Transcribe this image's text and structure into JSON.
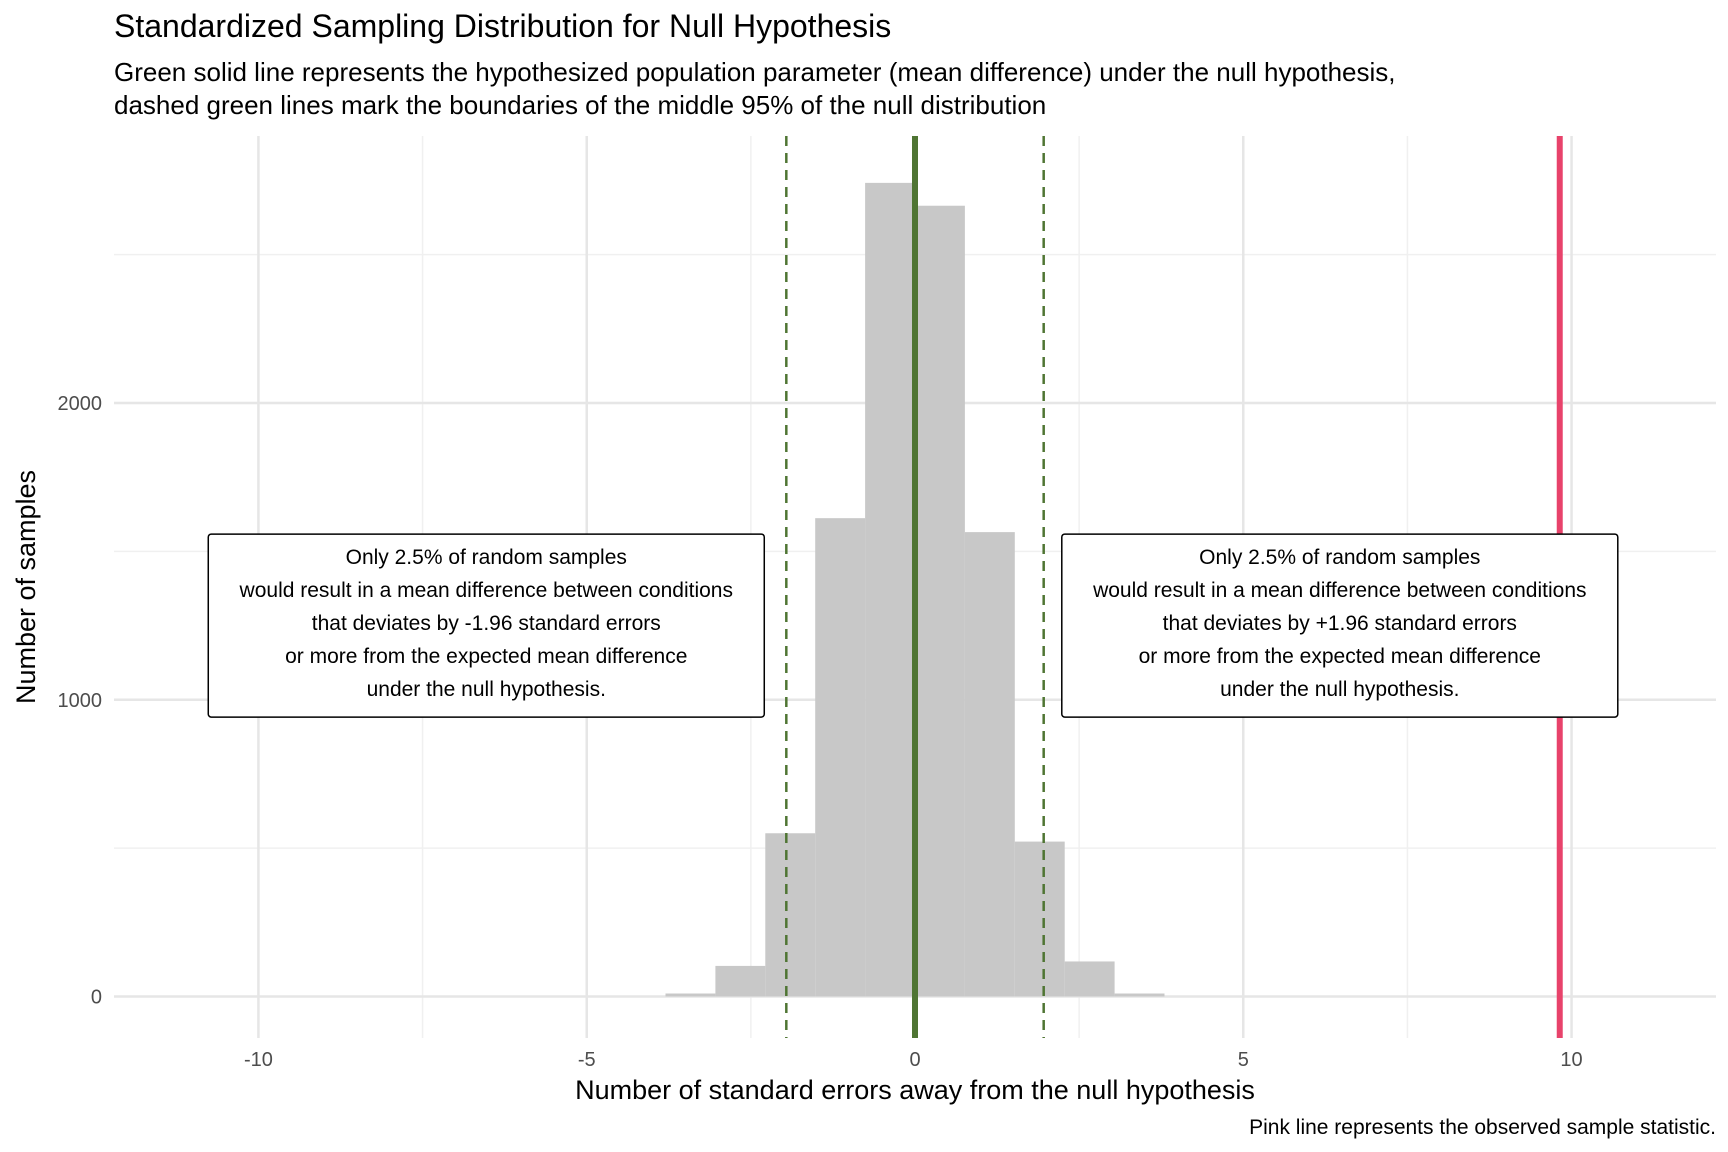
{
  "chart_data": {
    "type": "bar",
    "title": "Standardized Sampling Distribution for Null Hypothesis",
    "subtitle": [
      "Green solid line represents the hypothesized population parameter (mean difference) under the null hypothesis,",
      "dashed green lines mark the boundaries of the middle 95% of the null distribution"
    ],
    "caption": "Pink line represents the observed sample statistic.",
    "xlabel": "Number of standard errors away from the null hypothesis",
    "ylabel": "Number of samples",
    "xlim": [
      -12.2,
      12.2
    ],
    "ylim": [
      -140,
      2900
    ],
    "x_ticks": [
      {
        "value": -10,
        "label": "-10"
      },
      {
        "value": -5,
        "label": "-5"
      },
      {
        "value": 0,
        "label": "0"
      },
      {
        "value": 5,
        "label": "5"
      },
      {
        "value": 10,
        "label": "10"
      }
    ],
    "y_ticks": [
      {
        "value": 0,
        "label": "0"
      },
      {
        "value": 1000,
        "label": "1000"
      },
      {
        "value": 2000,
        "label": "2000"
      }
    ],
    "x_minor_grid": [
      -7.5,
      -2.5,
      2.5,
      7.5
    ],
    "y_minor_grid": [
      500,
      1500,
      2500
    ],
    "grid": true,
    "bin_width": 0.76,
    "bins": [
      {
        "left": -3.8,
        "count": 10
      },
      {
        "left": -3.04,
        "count": 103
      },
      {
        "left": -2.28,
        "count": 550
      },
      {
        "left": -1.52,
        "count": 1612
      },
      {
        "left": -0.76,
        "count": 2742
      },
      {
        "left": 0.0,
        "count": 2665
      },
      {
        "left": 0.76,
        "count": 1565
      },
      {
        "left": 1.52,
        "count": 522
      },
      {
        "left": 2.28,
        "count": 118
      },
      {
        "left": 3.04,
        "count": 10
      }
    ],
    "null_line": {
      "x": 0,
      "color": "#4f7533"
    },
    "boundary_lines": {
      "x": [
        -1.96,
        1.96
      ],
      "color": "#4f7533"
    },
    "observed_line": {
      "x": 9.82,
      "color": "#e8436b"
    },
    "bar_color": "#c8c8c8",
    "annotations": [
      {
        "side": "left",
        "x_center": -6.53,
        "y_center": 1250,
        "lines": [
          "Only 2.5% of random samples",
          "would result in a mean difference between conditions",
          "that deviates by -1.96 standard errors",
          "or more from the expected mean difference",
          "under the null hypothesis."
        ]
      },
      {
        "side": "right",
        "x_center": 6.47,
        "y_center": 1250,
        "lines": [
          "Only 2.5% of random samples",
          "would result in a mean difference between conditions",
          "that deviates by +1.96 standard errors",
          "or more from the expected mean difference",
          "under the null hypothesis."
        ]
      }
    ]
  }
}
